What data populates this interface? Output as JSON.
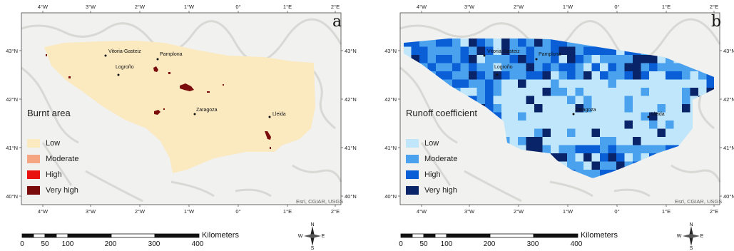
{
  "panels": [
    {
      "letter": "a",
      "legend_title": "Burnt area",
      "legend": [
        {
          "label": "Low",
          "color": "#fbe9c0"
        },
        {
          "label": "Moderate",
          "color": "#f6a582"
        },
        {
          "label": "High",
          "color": "#e8110f"
        },
        {
          "label": "Very high",
          "color": "#7a0c0c"
        }
      ],
      "credit": "Esri, CGIAR, USGS"
    },
    {
      "letter": "b",
      "legend_title": "Runoff coefficient",
      "legend": [
        {
          "label": "Low",
          "color": "#bfe6fb"
        },
        {
          "label": "Moderate",
          "color": "#4aa2ee"
        },
        {
          "label": "High",
          "color": "#0a5fd6"
        },
        {
          "label": "Very high",
          "color": "#0a2469"
        }
      ],
      "credit": "Esri, CGIAR, USGS"
    }
  ],
  "longitudes": [
    "4°W",
    "3°W",
    "2°W",
    "1°W",
    "0°",
    "1°E",
    "2°E"
  ],
  "latitudes": [
    "43°N",
    "42°N",
    "41°N",
    "40°N"
  ],
  "cities": [
    "Vitoria-Gasteiz",
    "Pamplona",
    "Logroño",
    "Zaragoza",
    "Lleida"
  ],
  "scale": {
    "ticks": [
      "0",
      "50",
      "100",
      "200",
      "300",
      "400"
    ],
    "units": "Kilometers"
  },
  "compass": {
    "n": "N",
    "s": "S",
    "e": "E",
    "w": "W"
  },
  "background_color": "#f1f1ef"
}
